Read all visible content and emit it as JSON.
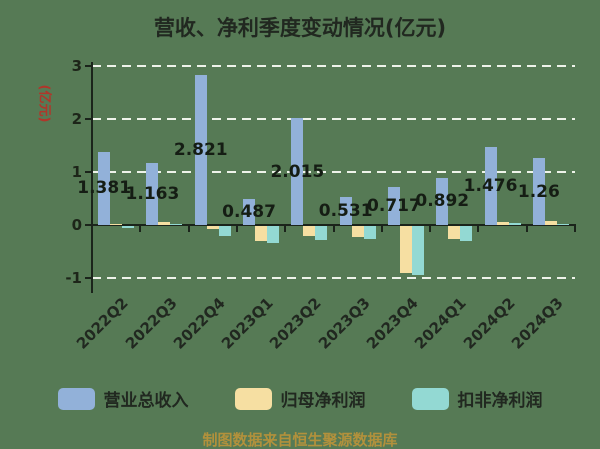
{
  "title": "营收、净利季度变动情况(亿元)",
  "footer": "制图数据来自恒生聚源数据库",
  "colors": {
    "background": "#567a55",
    "axis": "#1b241b",
    "gridline": "#eef3ea",
    "text": "#212820",
    "unit_label": "#b0362a",
    "footer_text": "#b2913c",
    "revenue_bar": "#92b1d9",
    "net_profit_bar": "#f6dfa2",
    "non_gaap_bar": "#93d9d3"
  },
  "chart_data": {
    "type": "bar",
    "title": "营收、净利季度变动情况(亿元)",
    "ylabel": "(亿元)",
    "categories": [
      "2022Q2",
      "2022Q3",
      "2022Q4",
      "2023Q1",
      "2023Q2",
      "2023Q3",
      "2023Q4",
      "2024Q1",
      "2024Q2",
      "2024Q3"
    ],
    "series": [
      {
        "id": "revenue",
        "name": "营业总收入",
        "color": "#92b1d9",
        "values": [
          1.381,
          1.163,
          2.821,
          0.487,
          2.015,
          0.531,
          0.717,
          0.892,
          1.476,
          1.26
        ],
        "labels": [
          "1.381",
          "1.163",
          "2.821",
          "0.487",
          "2.015",
          "0.531",
          "0.717",
          "0.892",
          "1.476",
          "1.26"
        ]
      },
      {
        "id": "net-profit",
        "name": "归母净利润",
        "color": "#f6dfa2",
        "values": [
          0.02,
          0.06,
          -0.05,
          -0.28,
          -0.18,
          -0.2,
          -0.88,
          -0.25,
          0.06,
          0.08
        ]
      },
      {
        "id": "non-gaap-net-profit",
        "name": "扣非净利润",
        "color": "#93d9d3",
        "values": [
          -0.03,
          0.02,
          -0.19,
          -0.32,
          -0.27,
          -0.25,
          -0.92,
          -0.28,
          0.03,
          0.02
        ]
      }
    ],
    "yticks": [
      3,
      2,
      1,
      0,
      -1
    ],
    "ylim": [
      -1.3,
      3.1
    ],
    "grid": "horizontal-dashed",
    "legend_position": "bottom",
    "x_tick_label_rotation": 45
  }
}
